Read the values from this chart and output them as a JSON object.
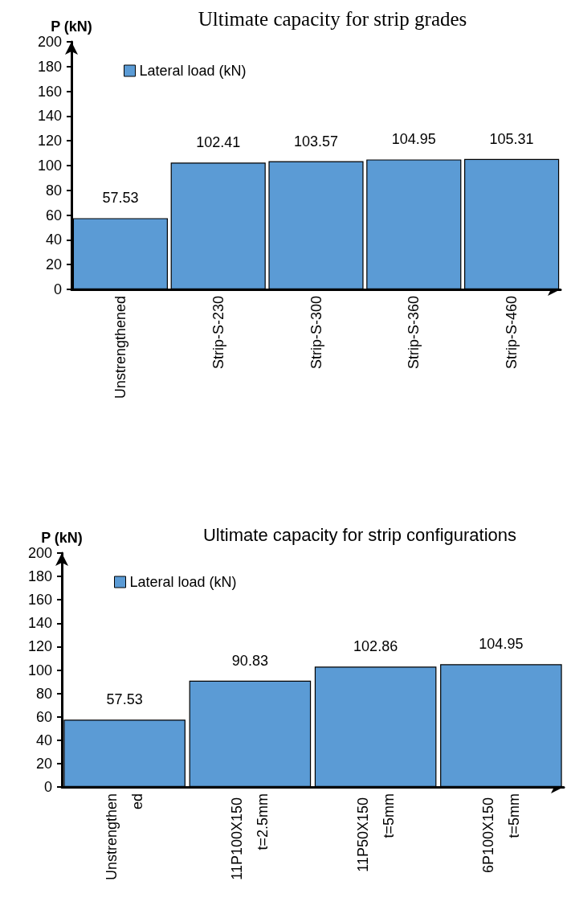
{
  "chart_data": [
    {
      "type": "bar",
      "title": "Ultimate capacity for strip grades",
      "ylabel": "P (kN)",
      "categories": [
        "Unstrengthened",
        "Strip-S-230",
        "Strip-S-300",
        "Strip-S-360",
        "Strip-S-460"
      ],
      "series": [
        {
          "name": "Lateral load (kN)",
          "color": "#5b9bd5",
          "values": [
            57.53,
            102.41,
            103.57,
            104.95,
            105.31
          ]
        }
      ],
      "ylim": [
        0,
        200
      ],
      "yticks": [
        0,
        20,
        40,
        60,
        80,
        100,
        120,
        140,
        160,
        180,
        200
      ],
      "data_labels": true,
      "legend": "top left",
      "grid": false
    },
    {
      "type": "bar",
      "title": "Ultimate capacity for strip configurations",
      "ylabel": "P (kN)",
      "categories": [
        "Unstrengthened",
        "11P100X150 t=2.5mm",
        "11P50X150 t=5mm",
        "6P100X150 t=5mm"
      ],
      "series": [
        {
          "name": "Lateral load (kN)",
          "color": "#5b9bd5",
          "values": [
            57.53,
            90.83,
            102.86,
            104.95
          ]
        }
      ],
      "ylim": [
        0,
        200
      ],
      "yticks": [
        0,
        20,
        40,
        60,
        80,
        100,
        120,
        140,
        160,
        180,
        200
      ],
      "data_labels": true,
      "legend": "top left",
      "grid": false
    }
  ]
}
